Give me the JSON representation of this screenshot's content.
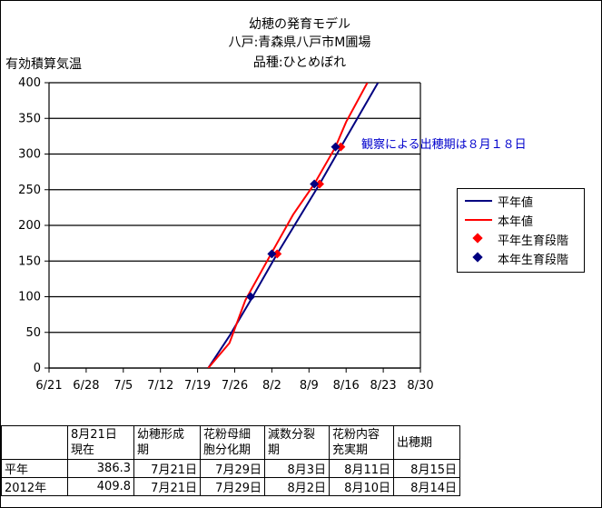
{
  "title_lines": [
    "幼穂の発育モデル",
    "八戸:青森県八戸市M圃場",
    "品種:ひとめぼれ"
  ],
  "colors": {
    "normal": "#000080",
    "current": "#ff0000",
    "stage_normal": "#ff0000",
    "stage_current": "#000080"
  },
  "annotation": "観察による出穂期は８月１８日",
  "chart_data": {
    "type": "line",
    "ylabel": "有効積算気温",
    "xlabel": "",
    "x_ticks": [
      "6/21",
      "6/28",
      "7/5",
      "7/12",
      "7/19",
      "7/26",
      "8/2",
      "8/9",
      "8/16",
      "8/23",
      "8/30"
    ],
    "y_ticks": [
      "0",
      "50",
      "100",
      "150",
      "200",
      "250",
      "300",
      "350",
      "400"
    ],
    "xlim": [
      "6/21",
      "8/30"
    ],
    "ylim": [
      0,
      400
    ],
    "grid": "horizontal",
    "legend_position": "right",
    "series": [
      {
        "name": "平年値",
        "kind": "line",
        "color": "#000080",
        "points": [
          [
            "7/21",
            0
          ],
          [
            "7/25",
            45
          ],
          [
            "7/29",
            95
          ],
          [
            "8/3",
            160
          ],
          [
            "8/11",
            258
          ],
          [
            "8/15",
            310
          ],
          [
            "8/22",
            400
          ]
        ]
      },
      {
        "name": "本年値",
        "kind": "line",
        "color": "#ff0000",
        "points": [
          [
            "7/21",
            0
          ],
          [
            "7/25",
            35
          ],
          [
            "7/28",
            95
          ],
          [
            "8/2",
            162
          ],
          [
            "8/6",
            215
          ],
          [
            "8/10",
            258
          ],
          [
            "8/14",
            310
          ],
          [
            "8/16",
            345
          ],
          [
            "8/20",
            400
          ]
        ]
      },
      {
        "name": "平年生育段階",
        "kind": "marker",
        "color": "#ff0000",
        "points": [
          [
            "8/3",
            160
          ],
          [
            "8/11",
            258
          ],
          [
            "8/15",
            310
          ]
        ]
      },
      {
        "name": "本年生育段階",
        "kind": "marker",
        "color": "#000080",
        "points": [
          [
            "7/29",
            100
          ],
          [
            "8/2",
            160
          ],
          [
            "8/10",
            258
          ],
          [
            "8/14",
            310
          ]
        ]
      }
    ]
  },
  "table": {
    "headers": [
      "",
      "8月21日\n現在",
      "幼穂形成\n期",
      "花粉母細\n胞分化期",
      "減数分裂\n期",
      "花粉内容\n充実期",
      "出穂期"
    ],
    "rows": [
      [
        "平年",
        "386.3",
        "7月21日",
        "7月29日",
        "8月3日",
        "8月11日",
        "8月15日"
      ],
      [
        "2012年",
        "409.8",
        "7月21日",
        "7月29日",
        "8月2日",
        "8月10日",
        "8月14日"
      ]
    ]
  }
}
